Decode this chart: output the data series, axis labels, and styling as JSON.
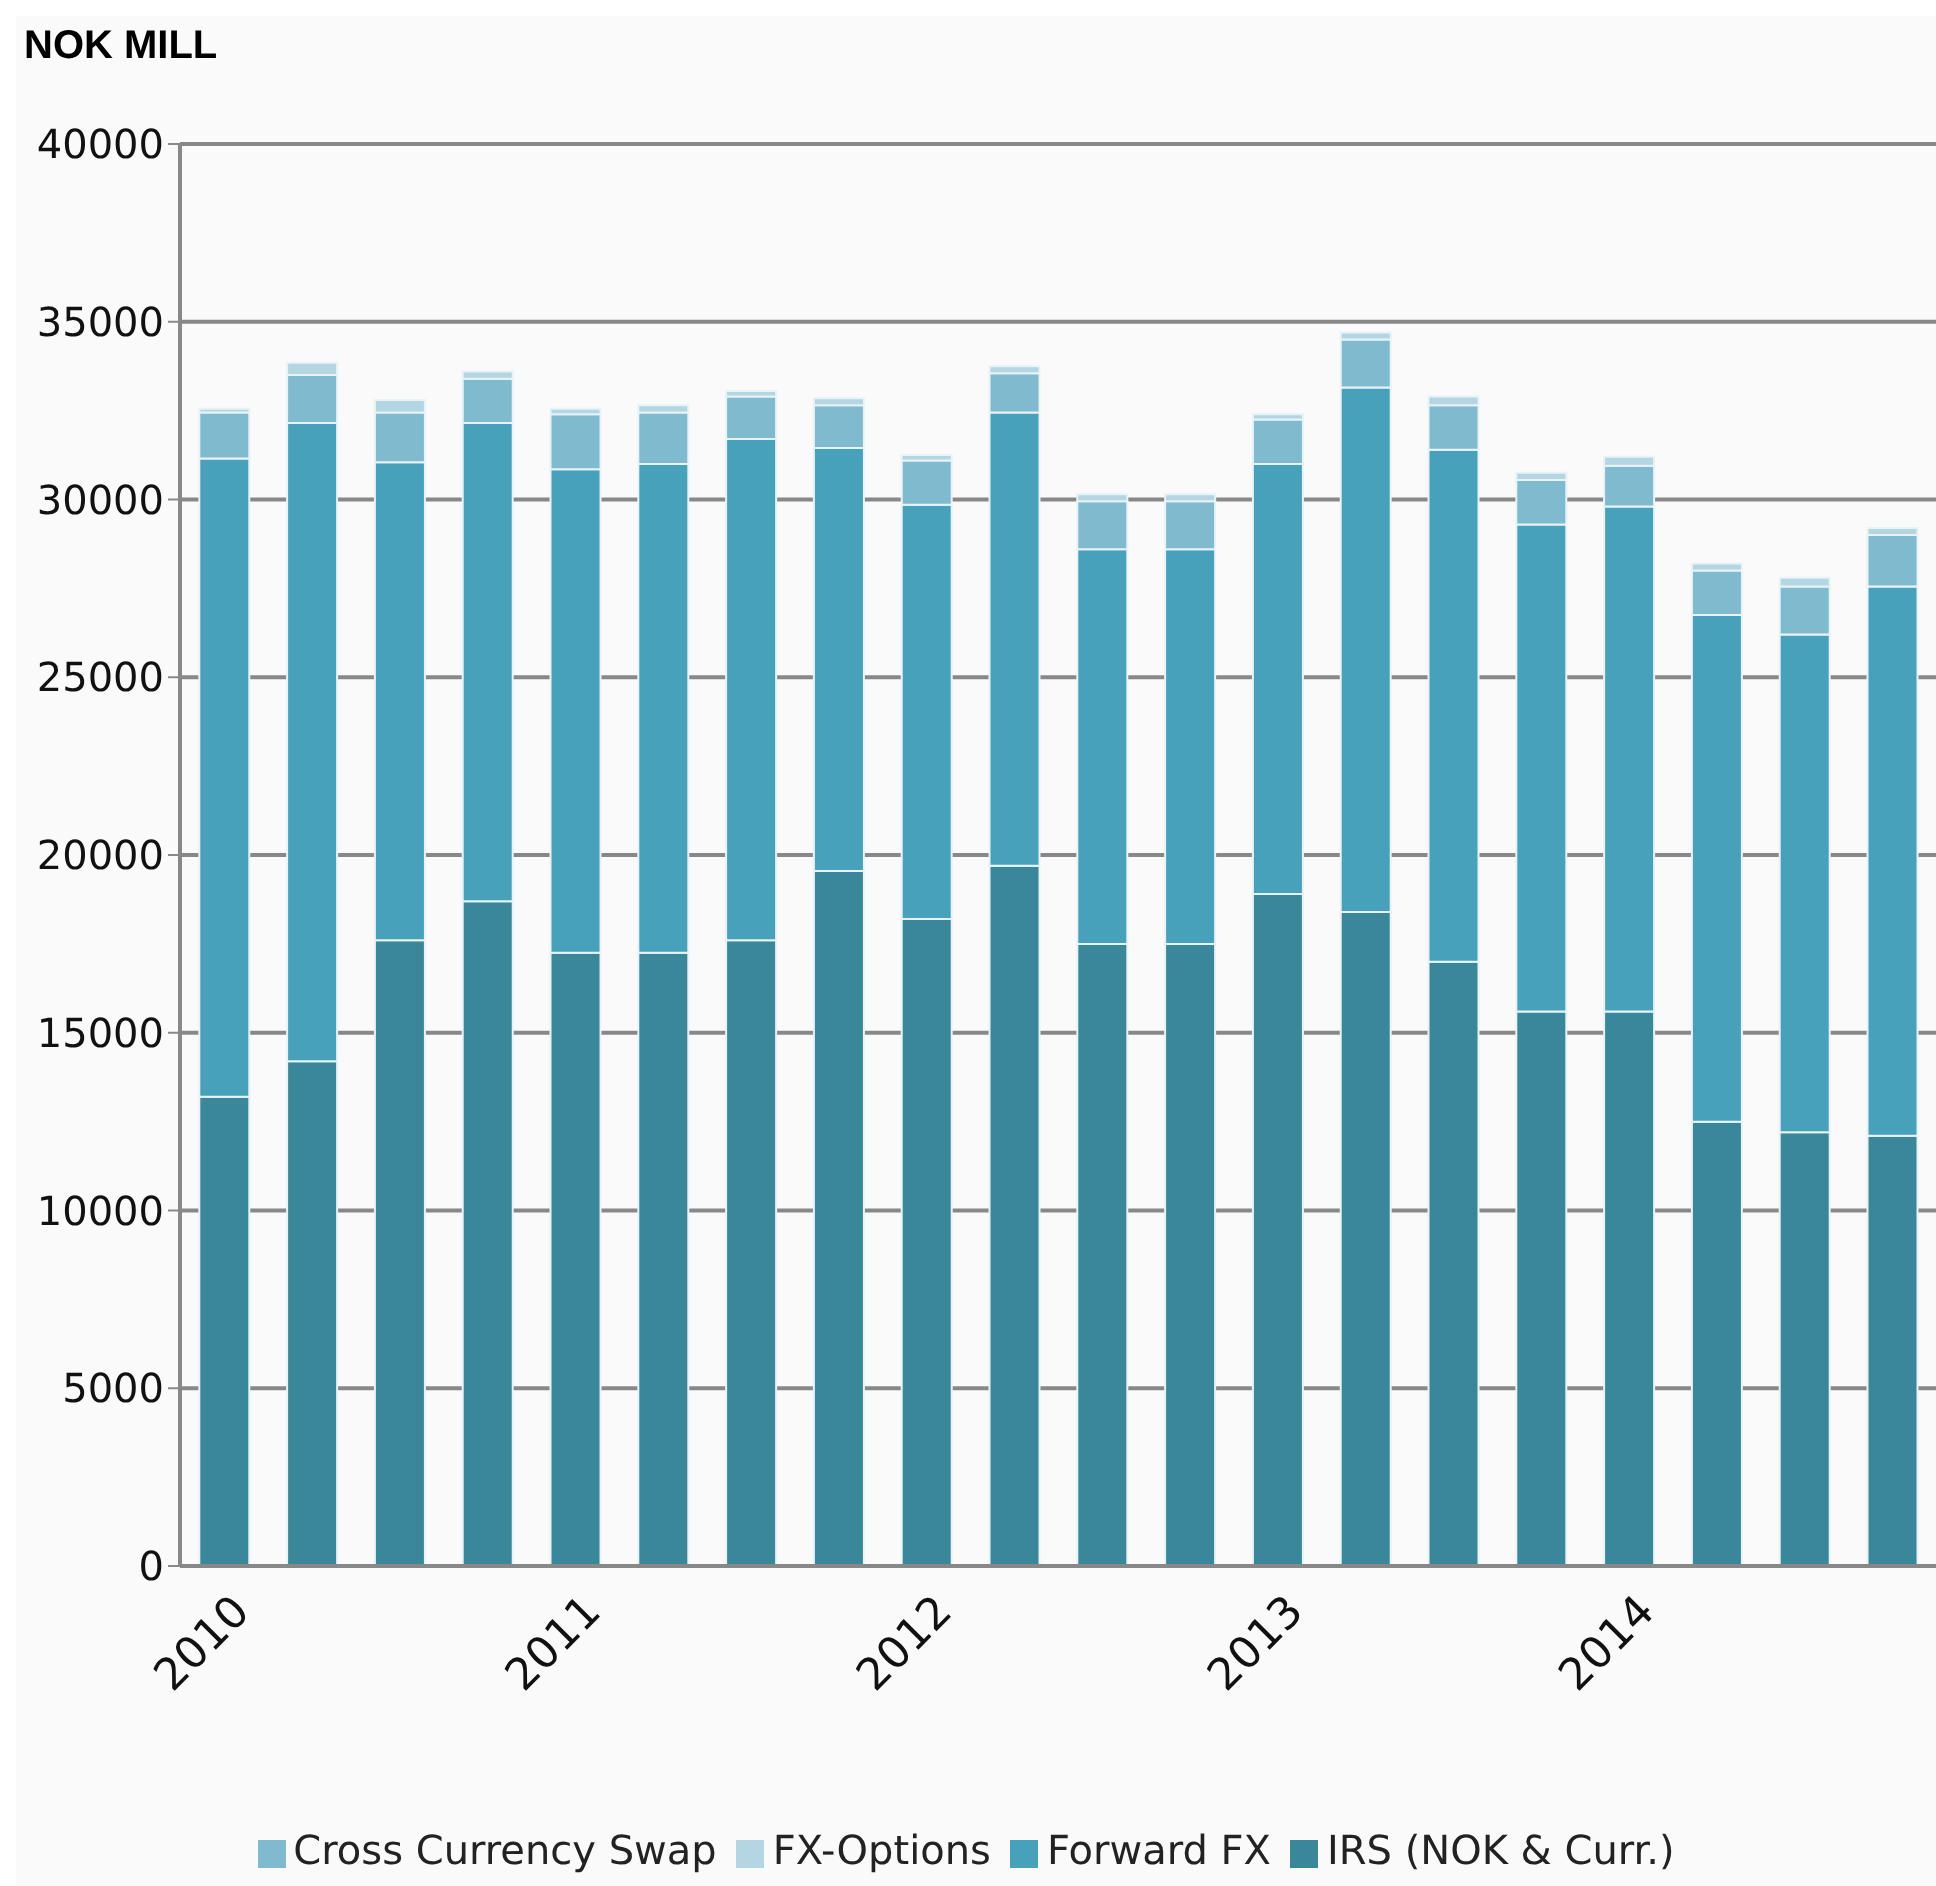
{
  "chart_data": {
    "type": "bar",
    "title": "NOK MILL",
    "stacked": true,
    "grid": "y",
    "legend": "bottom",
    "categories": [
      "2010",
      null,
      null,
      null,
      "2011",
      null,
      null,
      null,
      "2012",
      null,
      null,
      null,
      "2013",
      null,
      null,
      null,
      "2014",
      null,
      null,
      null
    ],
    "series": [
      {
        "name": "IRS (NOK & Curr.)",
        "color": "#3a8799",
        "values": [
          13200,
          14200,
          17600,
          18700,
          17250,
          17250,
          17600,
          19550,
          18200,
          19700,
          17500,
          17500,
          18900,
          18400,
          17000,
          15600,
          15600,
          12500,
          12200,
          12100
        ]
      },
      {
        "name": "Forward FX",
        "color": "#48a1bb",
        "values": [
          17950,
          17950,
          13450,
          13450,
          13600,
          13750,
          14100,
          11900,
          11650,
          12750,
          11100,
          11100,
          12100,
          14750,
          14400,
          13700,
          14200,
          14250,
          14000,
          15450
        ]
      },
      {
        "name": "Cross Currency Swap",
        "color": "#7fbacf",
        "values": [
          1300,
          1350,
          1400,
          1250,
          1550,
          1450,
          1200,
          1200,
          1250,
          1100,
          1350,
          1350,
          1250,
          1350,
          1250,
          1250,
          1150,
          1250,
          1350,
          1450
        ]
      },
      {
        "name": "FX-Options",
        "color": "#b3d6e2",
        "values": [
          100,
          350,
          350,
          200,
          150,
          200,
          150,
          200,
          150,
          200,
          200,
          200,
          150,
          200,
          250,
          200,
          250,
          200,
          250,
          200
        ]
      }
    ],
    "ylim": [
      0,
      40000
    ],
    "yticks": [
      0,
      5000,
      10000,
      15000,
      20000,
      25000,
      30000,
      35000,
      40000
    ]
  }
}
